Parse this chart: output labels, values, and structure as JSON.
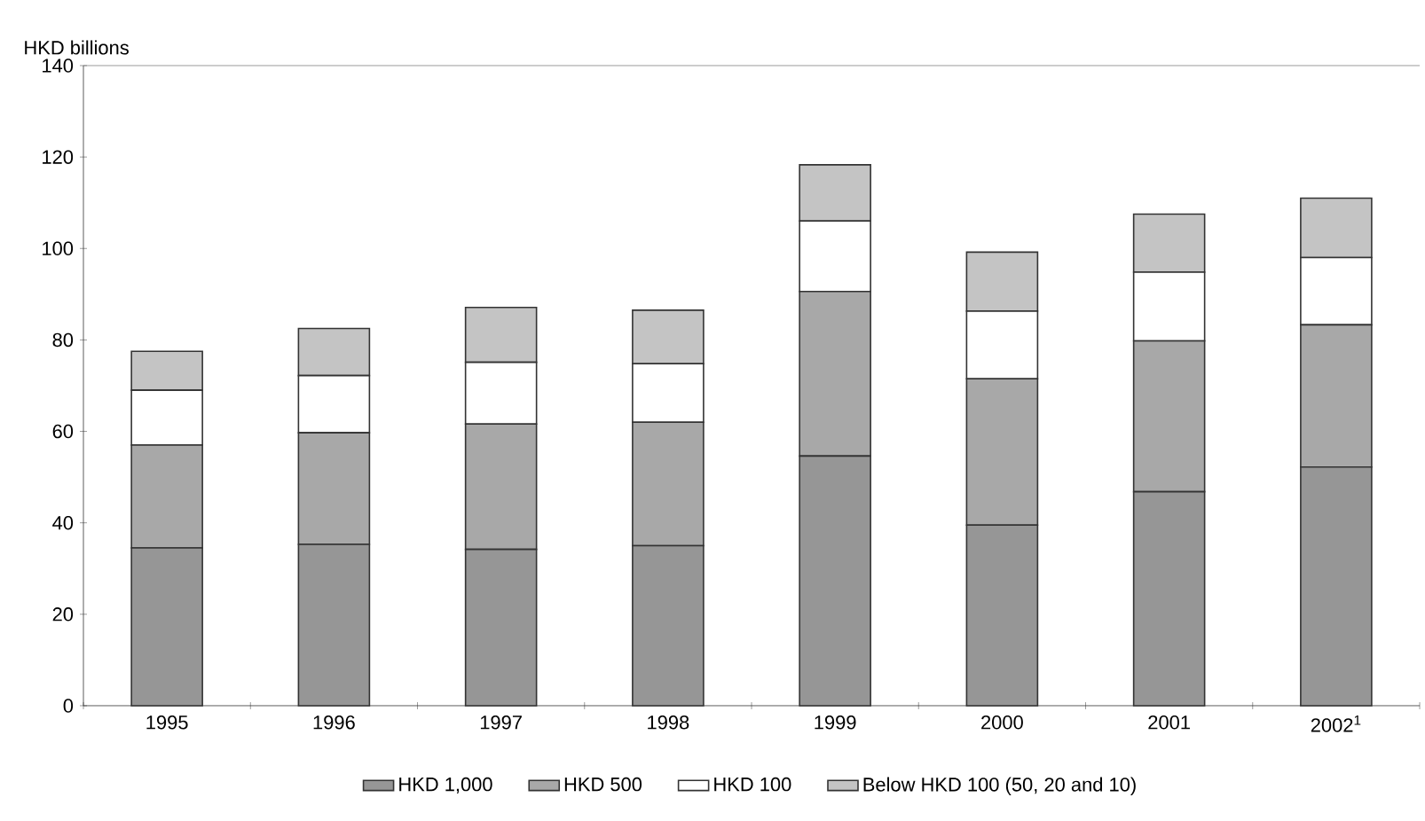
{
  "chart_data": {
    "type": "bar",
    "stacked": true,
    "ylabel": "HKD billions",
    "categories": [
      "1995",
      "1996",
      "1997",
      "1998",
      "1999",
      "2000",
      "2001",
      "2002$^{1}$"
    ],
    "series": [
      {
        "name": "HKD 1,000",
        "color": "#969696",
        "values": [
          34.5,
          35.3,
          34.2,
          35,
          54.6,
          39.5,
          46.8,
          52.2
        ]
      },
      {
        "name": "HKD 500",
        "color": "#a8a8a8",
        "values": [
          22.5,
          24.4,
          27.4,
          27,
          36,
          32,
          33,
          31.1
        ]
      },
      {
        "name": "HKD 100",
        "color": "#ffffff",
        "values": [
          12,
          12.5,
          13.5,
          12.8,
          15.4,
          14.8,
          15,
          14.7
        ]
      },
      {
        "name": "Below HKD 100 (50, 20 and 10)",
        "color": "#c4c4c4",
        "values": [
          8.5,
          10.3,
          12,
          11.7,
          12.3,
          12.9,
          12.7,
          13
        ]
      }
    ],
    "ylim": [
      0,
      140
    ],
    "yticks": [
      0,
      20,
      40,
      60,
      80,
      100,
      120,
      140
    ],
    "grid": false,
    "legend": "bottom"
  }
}
